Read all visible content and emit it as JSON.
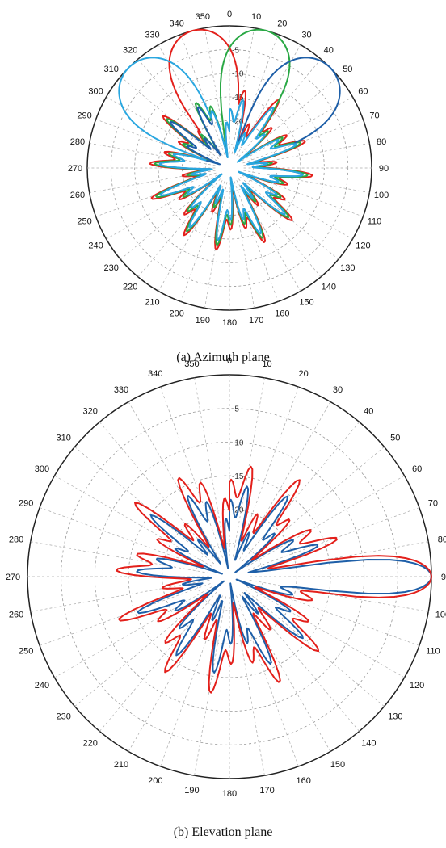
{
  "captions": {
    "a": "(a) Azimuth plane",
    "b": "(b) Elevation plane"
  },
  "chart_data": [
    {
      "type": "polar",
      "angle_ticks": [
        "0",
        "10",
        "20",
        "30",
        "40",
        "50",
        "60",
        "70",
        "80",
        "90",
        "100",
        "110",
        "120",
        "130",
        "140",
        "150",
        "160",
        "170",
        "180",
        "190",
        "200",
        "210",
        "220",
        "230",
        "240",
        "250",
        "260",
        "270",
        "280",
        "290",
        "300",
        "310",
        "320",
        "330",
        "340",
        "350"
      ],
      "radial_ticks": [
        "-5",
        "-10",
        "-15",
        "-20"
      ],
      "radial_range_db": [
        -30,
        0
      ],
      "grid": true,
      "series": [
        {
          "color": "#e3201b",
          "main_lobe_deg": 345,
          "beamwidth_deg": 25,
          "sidelobe_level_db": -19
        },
        {
          "color": "#29a844",
          "main_lobe_deg": 15,
          "beamwidth_deg": 25,
          "sidelobe_level_db": -20
        },
        {
          "color": "#1e5fa8",
          "main_lobe_deg": 45,
          "beamwidth_deg": 27,
          "sidelobe_level_db": -21
        },
        {
          "color": "#2aa7e0",
          "main_lobe_deg": 315,
          "beamwidth_deg": 27,
          "sidelobe_level_db": -21
        }
      ]
    },
    {
      "type": "polar",
      "angle_ticks": [
        "0",
        "10",
        "20",
        "30",
        "40",
        "50",
        "60",
        "70",
        "80",
        "90",
        "100",
        "110",
        "120",
        "130",
        "140",
        "150",
        "160",
        "170",
        "180",
        "190",
        "200",
        "210",
        "220",
        "230",
        "240",
        "250",
        "260",
        "270",
        "280",
        "290",
        "300",
        "310",
        "320",
        "330",
        "340",
        "350"
      ],
      "radial_ticks": [
        "-5",
        "-10",
        "-15",
        "-20"
      ],
      "radial_range_db": [
        -30,
        0
      ],
      "grid": true,
      "series": [
        {
          "color": "#1e5fa8",
          "main_lobe_deg": 90,
          "beamwidth_deg": 9,
          "sidelobe_level_db": -22
        },
        {
          "color": "#e3201b",
          "main_lobe_deg": 90,
          "beamwidth_deg": 11,
          "sidelobe_level_db": -19
        }
      ]
    }
  ]
}
